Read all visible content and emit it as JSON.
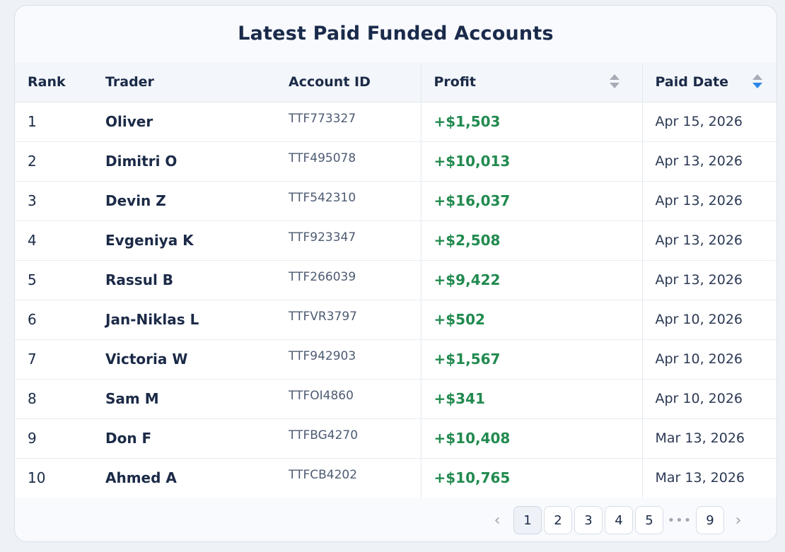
{
  "title": "Latest Paid Funded Accounts",
  "columns": {
    "rank": "Rank",
    "trader": "Trader",
    "account_id": "Account ID",
    "profit": "Profit",
    "paid_date": "Paid Date"
  },
  "sort": {
    "column": "paid_date",
    "direction": "descending",
    "active_color": "#2e86e8"
  },
  "profit_color": "#218a4f",
  "rows": [
    {
      "rank": "1",
      "trader": "Oliver",
      "account_id": "TTF773327",
      "profit": "+$1,503",
      "paid_date": "Apr 15, 2026"
    },
    {
      "rank": "2",
      "trader": "Dimitri O",
      "account_id": "TTF495078",
      "profit": "+$10,013",
      "paid_date": "Apr 13, 2026"
    },
    {
      "rank": "3",
      "trader": "Devin Z",
      "account_id": "TTF542310",
      "profit": "+$16,037",
      "paid_date": "Apr 13, 2026"
    },
    {
      "rank": "4",
      "trader": "Evgeniya K",
      "account_id": "TTF923347",
      "profit": "+$2,508",
      "paid_date": "Apr 13, 2026"
    },
    {
      "rank": "5",
      "trader": "Rassul B",
      "account_id": "TTF266039",
      "profit": "+$9,422",
      "paid_date": "Apr 13, 2026"
    },
    {
      "rank": "6",
      "trader": "Jan-Niklas L",
      "account_id": "TTFVR3797",
      "profit": "+$502",
      "paid_date": "Apr 10, 2026"
    },
    {
      "rank": "7",
      "trader": "Victoria W",
      "account_id": "TTF942903",
      "profit": "+$1,567",
      "paid_date": "Apr 10, 2026"
    },
    {
      "rank": "8",
      "trader": "Sam M",
      "account_id": "TTFOI4860",
      "profit": "+$341",
      "paid_date": "Apr 10, 2026"
    },
    {
      "rank": "9",
      "trader": "Don F",
      "account_id": "TTFBG4270",
      "profit": "+$10,408",
      "paid_date": "Mar 13, 2026"
    },
    {
      "rank": "10",
      "trader": "Ahmed A",
      "account_id": "TTFCB4202",
      "profit": "+$10,765",
      "paid_date": "Mar 13, 2026"
    }
  ],
  "pagination": {
    "prev_icon": "chevron-left-icon",
    "next_icon": "chevron-right-icon",
    "current": "1",
    "pages": [
      "1",
      "2",
      "3",
      "4",
      "5"
    ],
    "ellipsis": "•••",
    "last": "9"
  }
}
